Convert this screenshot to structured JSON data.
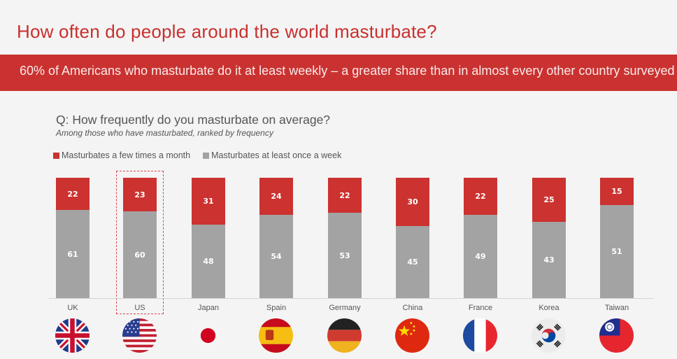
{
  "header": {
    "title": "How often do people around the world masturbate?",
    "banner": "60% of Americans who masturbate do it at least weekly – a greater share than in almost every other country surveyed"
  },
  "colors": {
    "accent": "#c8302e",
    "banner_bg": "#c93230",
    "series_red": "#cc3230",
    "series_gray": "#a3a3a3",
    "background": "#f4f4f4"
  },
  "chart_data": {
    "type": "bar",
    "stacked": true,
    "normalized": true,
    "title": "Q: How frequently do you masturbate on average?",
    "subtitle": "Among those who have masturbated, ranked by frequency",
    "xlabel": "",
    "ylabel": "",
    "legend_position": "top-left",
    "grid": false,
    "highlighted_category": "US",
    "categories": [
      "UK",
      "US",
      "Japan",
      "Spain",
      "Germany",
      "China",
      "France",
      "Korea",
      "Taiwan"
    ],
    "series": [
      {
        "name": "Masturbates a few times a month",
        "color": "#cc3230",
        "values": [
          22,
          23,
          31,
          24,
          22,
          30,
          22,
          25,
          15
        ]
      },
      {
        "name": "Masturbates at least once a week",
        "color": "#a3a3a3",
        "values": [
          61,
          60,
          48,
          54,
          53,
          45,
          49,
          43,
          51
        ]
      }
    ]
  },
  "legend": [
    {
      "label": "Masturbates a few times a month",
      "color": "#cc3230"
    },
    {
      "label": "Masturbates at least once a week",
      "color": "#a3a3a3"
    }
  ],
  "flags": [
    "uk-flag-icon",
    "us-flag-icon",
    "japan-flag-icon",
    "spain-flag-icon",
    "germany-flag-icon",
    "china-flag-icon",
    "france-flag-icon",
    "korea-flag-icon",
    "taiwan-flag-icon"
  ]
}
